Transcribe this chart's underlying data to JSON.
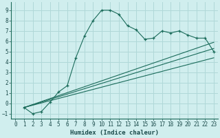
{
  "title": "",
  "xlabel": "Humidex (Indice chaleur)",
  "background_color": "#d0eeee",
  "grid_color": "#b0d8d8",
  "line_color": "#1a6b5a",
  "xlim": [
    -0.5,
    23.5
  ],
  "ylim": [
    -1.5,
    9.8
  ],
  "xticks": [
    0,
    1,
    2,
    3,
    4,
    5,
    6,
    7,
    8,
    9,
    10,
    11,
    12,
    13,
    14,
    15,
    16,
    17,
    18,
    19,
    20,
    21,
    22,
    23
  ],
  "yticks": [
    -1,
    0,
    1,
    2,
    3,
    4,
    5,
    6,
    7,
    8,
    9
  ],
  "curve1_x": [
    1,
    2,
    3,
    4,
    5,
    6,
    7,
    8,
    9,
    10,
    11,
    12,
    13,
    14,
    15,
    16,
    17,
    18,
    19,
    20,
    21,
    22,
    23
  ],
  "curve1_y": [
    -0.4,
    -1.0,
    -0.8,
    0.1,
    1.1,
    1.7,
    4.4,
    6.5,
    8.0,
    9.0,
    9.0,
    8.6,
    7.5,
    7.1,
    6.2,
    6.3,
    7.0,
    6.8,
    7.0,
    6.6,
    6.3,
    6.3,
    5.0
  ],
  "curve2_x": [
    1,
    23
  ],
  "curve2_y": [
    -0.4,
    5.9
  ],
  "curve3_x": [
    1,
    23
  ],
  "curve3_y": [
    -0.4,
    5.3
  ],
  "curve4_x": [
    1,
    23
  ],
  "curve4_y": [
    -0.4,
    4.4
  ]
}
